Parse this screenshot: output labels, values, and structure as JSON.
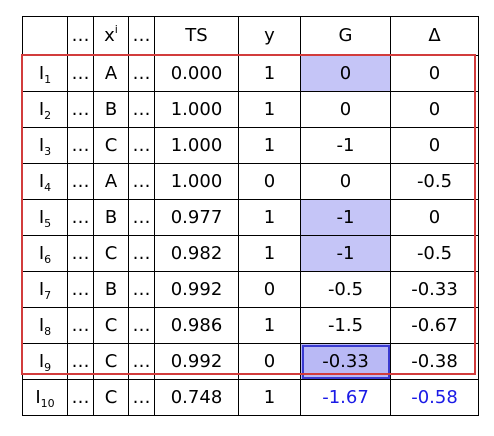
{
  "header": {
    "id": "",
    "dots1": "…",
    "x_base": "x",
    "x_sup": "i",
    "dots2": "…",
    "ts": "TS",
    "y": "y",
    "g": "G",
    "delta": "Δ"
  },
  "rows": [
    {
      "base": "I",
      "sub": "1",
      "dots1": "…",
      "x": "A",
      "dots2": "…",
      "ts": "0.000",
      "y": "1",
      "g": "0",
      "delta": "0"
    },
    {
      "base": "I",
      "sub": "2",
      "dots1": "…",
      "x": "B",
      "dots2": "…",
      "ts": "1.000",
      "y": "1",
      "g": "0",
      "delta": "0"
    },
    {
      "base": "I",
      "sub": "3",
      "dots1": "…",
      "x": "C",
      "dots2": "…",
      "ts": "1.000",
      "y": "1",
      "g": "-1",
      "delta": "0"
    },
    {
      "base": "I",
      "sub": "4",
      "dots1": "…",
      "x": "A",
      "dots2": "…",
      "ts": "1.000",
      "y": "0",
      "g": "0",
      "delta": "-0.5"
    },
    {
      "base": "I",
      "sub": "5",
      "dots1": "…",
      "x": "B",
      "dots2": "…",
      "ts": "0.977",
      "y": "1",
      "g": "-1",
      "delta": "0"
    },
    {
      "base": "I",
      "sub": "6",
      "dots1": "…",
      "x": "C",
      "dots2": "…",
      "ts": "0.982",
      "y": "1",
      "g": "-1",
      "delta": "-0.5"
    },
    {
      "base": "I",
      "sub": "7",
      "dots1": "…",
      "x": "B",
      "dots2": "…",
      "ts": "0.992",
      "y": "0",
      "g": "-0.5",
      "delta": "-0.33"
    },
    {
      "base": "I",
      "sub": "8",
      "dots1": "…",
      "x": "C",
      "dots2": "…",
      "ts": "0.986",
      "y": "1",
      "g": "-1.5",
      "delta": "-0.67"
    },
    {
      "base": "I",
      "sub": "9",
      "dots1": "…",
      "x": "C",
      "dots2": "…",
      "ts": "0.992",
      "y": "0",
      "g": "-0.33",
      "delta": "-0.38"
    },
    {
      "base": "I",
      "sub": "10",
      "dots1": "…",
      "x": "C",
      "dots2": "…",
      "ts": "0.748",
      "y": "1",
      "g": "-1.67",
      "delta": "-0.58"
    }
  ],
  "colors": {
    "highlight": "#c5c5f7",
    "highlight_border": "#3a3ad0",
    "frame": "#d23c3c",
    "last_row_text": "#1a1ae6"
  }
}
